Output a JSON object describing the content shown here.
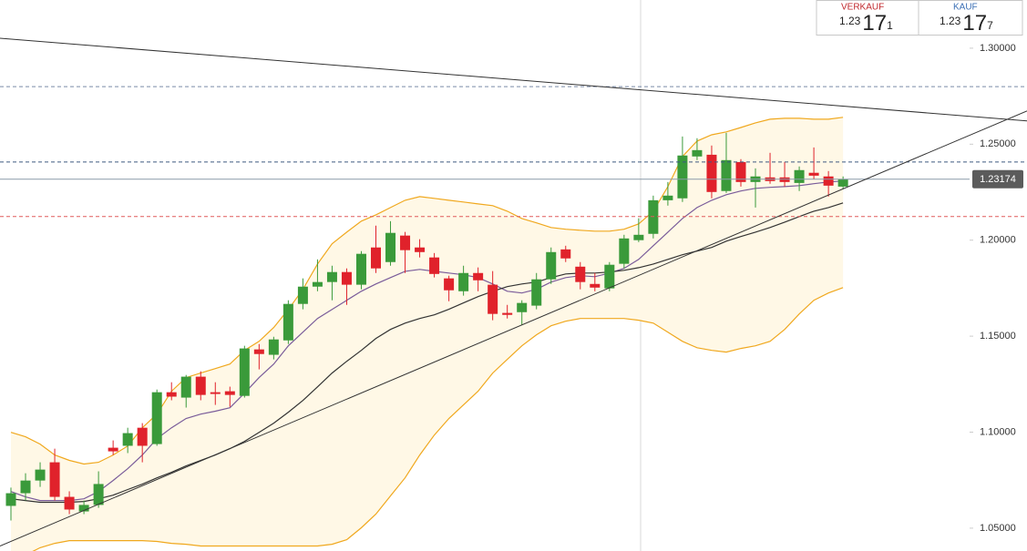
{
  "chart_data": {
    "type": "candlestick",
    "ylim": [
      1.0381,
      1.3251
    ],
    "yticks": [
      {
        "value": 1.05,
        "label": "1.05000"
      },
      {
        "value": 1.1,
        "label": "1.10000"
      },
      {
        "value": 1.15,
        "label": "1.15000"
      },
      {
        "value": 1.2,
        "label": "1.20000"
      },
      {
        "value": 1.25,
        "label": "1.25000"
      },
      {
        "value": 1.3,
        "label": "1.30000"
      }
    ],
    "up_color": "#3a9a3a",
    "down_color": "#e0222b",
    "open": [
      1.0616,
      1.0682,
      1.0748,
      1.0843,
      1.0663,
      1.0587,
      1.0621,
      1.0919,
      1.0929,
      1.1023,
      1.0938,
      1.1208,
      1.118,
      1.1289,
      1.1208,
      1.1213,
      1.1189,
      1.1431,
      1.1403,
      1.1478,
      1.1668,
      1.1758,
      1.1782,
      1.1834,
      1.1768,
      1.1962,
      1.1886,
      1.2024,
      1.1962,
      1.191,
      1.1801,
      1.1734,
      1.1829,
      1.1768,
      1.1621,
      1.1625,
      1.1659,
      1.1796,
      1.1952,
      1.1862,
      1.1772,
      1.1749,
      1.1877,
      1.2,
      1.2033,
      1.2208,
      1.2218,
      1.2436,
      1.2445,
      1.2256,
      1.2407,
      1.2303,
      1.2327,
      1.2327,
      1.2298,
      1.2351,
      1.2332,
      1.2279
    ],
    "high": [
      1.0711,
      1.0786,
      1.0843,
      1.0914,
      1.0692,
      1.0644,
      1.0796,
      1.0957,
      1.1023,
      1.1047,
      1.1222,
      1.126,
      1.1298,
      1.1317,
      1.126,
      1.1237,
      1.145,
      1.1459,
      1.1497,
      1.1687,
      1.1801,
      1.19,
      1.1867,
      1.1853,
      1.1943,
      1.2076,
      1.2099,
      1.2043,
      1.2005,
      1.1933,
      1.1815,
      1.1867,
      1.1858,
      1.1839,
      1.1663,
      1.1687,
      1.1829,
      1.1962,
      1.1971,
      1.1886,
      1.1829,
      1.1886,
      1.2028,
      1.2114,
      1.2232,
      1.2303,
      1.254,
      1.2531,
      1.2493,
      1.2559,
      1.2422,
      1.2374,
      1.2455,
      1.2407,
      1.2384,
      1.2483,
      1.236,
      1.2332
    ],
    "low": [
      1.054,
      1.0644,
      1.0715,
      1.0644,
      1.0573,
      1.0573,
      1.0606,
      1.0881,
      1.0891,
      1.0843,
      1.0929,
      1.1166,
      1.1128,
      1.1166,
      1.1142,
      1.1132,
      1.118,
      1.1327,
      1.1379,
      1.1459,
      1.164,
      1.1734,
      1.1687,
      1.1663,
      1.1744,
      1.1829,
      1.1867,
      1.1829,
      1.191,
      1.1806,
      1.1682,
      1.1711,
      1.1734,
      1.1583,
      1.1592,
      1.1559,
      1.164,
      1.1772,
      1.1886,
      1.1744,
      1.1734,
      1.1734,
      1.1853,
      1.199,
      1.2009,
      1.218,
      1.2199,
      1.2417,
      1.2218,
      1.2246,
      1.2279,
      1.217,
      1.2294,
      1.2279,
      1.2256,
      1.2317,
      1.2227,
      1.2265
    ],
    "close": [
      1.0682,
      1.0748,
      1.0805,
      1.0663,
      1.0597,
      1.0621,
      1.073,
      1.09,
      1.0995,
      1.0929,
      1.1208,
      1.1185,
      1.1289,
      1.1194,
      1.1199,
      1.1194,
      1.1436,
      1.1407,
      1.1483,
      1.1668,
      1.1758,
      1.1782,
      1.1834,
      1.1768,
      1.1929,
      1.1853,
      1.2038,
      1.1948,
      1.1938,
      1.1824,
      1.1739,
      1.1829,
      1.1791,
      1.1616,
      1.1611,
      1.1673,
      1.1796,
      1.1938,
      1.1905,
      1.1782,
      1.1753,
      1.1872,
      1.2009,
      1.2028,
      1.2208,
      1.2232,
      1.2441,
      1.2469,
      1.2251,
      1.2417,
      1.2303,
      1.2332,
      1.2308,
      1.2303,
      1.2365,
      1.2336,
      1.2284,
      1.2317
    ],
    "band_fill": "#fff8e6",
    "overlays": [
      {
        "color": "#f0a81e",
        "values": [
          1.0999,
          1.0976,
          1.0938,
          1.0881,
          1.0853,
          1.0834,
          1.0843,
          1.0881,
          1.0928,
          1.1023,
          1.1094,
          1.1213,
          1.1284,
          1.1308,
          1.1331,
          1.1355,
          1.1426,
          1.1473,
          1.1545,
          1.1639,
          1.1744,
          1.1876,
          1.1981,
          1.2042,
          1.2099,
          1.2132,
          1.217,
          1.2208,
          1.2227,
          1.2218,
          1.2208,
          1.2199,
          1.2189,
          1.218,
          1.2151,
          1.2113,
          1.209,
          1.2066,
          1.2057,
          1.2052,
          1.2047,
          1.2047,
          1.2057,
          1.2085,
          1.2151,
          1.2279,
          1.2436,
          1.2516,
          1.2549,
          1.2564,
          1.2587,
          1.2611,
          1.263,
          1.2635,
          1.2635,
          1.263,
          1.263,
          1.264
        ]
      },
      {
        "color": "#f0a81e",
        "values": [
          1.0312,
          1.036,
          1.0398,
          1.0421,
          1.0435,
          1.0435,
          1.0435,
          1.0435,
          1.0435,
          1.0435,
          1.0431,
          1.0421,
          1.0416,
          1.0407,
          1.0407,
          1.0407,
          1.0407,
          1.0407,
          1.0407,
          1.0407,
          1.0407,
          1.0407,
          1.0416,
          1.044,
          1.0502,
          1.0573,
          1.0668,
          1.0762,
          1.0881,
          1.0985,
          1.1071,
          1.1142,
          1.1213,
          1.1308,
          1.1379,
          1.145,
          1.1507,
          1.1554,
          1.1578,
          1.1592,
          1.1592,
          1.1592,
          1.1592,
          1.1583,
          1.1568,
          1.1521,
          1.1473,
          1.144,
          1.1426,
          1.1417,
          1.1436,
          1.145,
          1.1473,
          1.1535,
          1.1616,
          1.1687,
          1.1725,
          1.1753
        ]
      },
      {
        "color": "#7a5c9a",
        "values": [
          1.0691,
          1.0663,
          1.0644,
          1.0644,
          1.0644,
          1.0653,
          1.0691,
          1.0748,
          1.081,
          1.0881,
          1.0966,
          1.1023,
          1.1071,
          1.1094,
          1.1109,
          1.1127,
          1.1203,
          1.1284,
          1.1355,
          1.145,
          1.1521,
          1.1592,
          1.1639,
          1.1687,
          1.1734,
          1.1772,
          1.1805,
          1.1838,
          1.1848,
          1.1838,
          1.1829,
          1.182,
          1.1805,
          1.1772,
          1.1734,
          1.1725,
          1.1744,
          1.1782,
          1.1805,
          1.1815,
          1.181,
          1.1829,
          1.1853,
          1.19,
          1.1971,
          1.2042,
          1.2113,
          1.217,
          1.2208,
          1.2237,
          1.2256,
          1.227,
          1.2275,
          1.2279,
          1.2284,
          1.2294,
          1.2303,
          1.2308
        ]
      },
      {
        "color": "#333333",
        "values": [
          1.0653,
          1.0644,
          1.0635,
          1.0635,
          1.0635,
          1.0639,
          1.0653,
          1.0672,
          1.0701,
          1.0729,
          1.0762,
          1.0791,
          1.0824,
          1.0853,
          1.0881,
          1.0914,
          1.0952,
          1.0999,
          1.1047,
          1.1104,
          1.1165,
          1.1236,
          1.1308,
          1.1369,
          1.1426,
          1.1488,
          1.1535,
          1.1568,
          1.1592,
          1.1611,
          1.164,
          1.1673,
          1.1706,
          1.1734,
          1.1758,
          1.1772,
          1.1782,
          1.1805,
          1.1824,
          1.1829,
          1.1829,
          1.1834,
          1.1843,
          1.1857,
          1.1876,
          1.19,
          1.1924,
          1.1943,
          1.1962,
          1.1995,
          1.2019,
          1.2042,
          1.2066,
          1.2094,
          1.2123,
          1.2151,
          1.217,
          1.2194
        ]
      }
    ],
    "trendlines": [
      {
        "color": "#333333",
        "start": 1.3052,
        "end": 1.2621
      },
      {
        "color": "#333333",
        "start": 1.0407,
        "end": 1.2673
      }
    ],
    "levels": [
      {
        "value": 1.28,
        "color": "#7a8aa8"
      },
      {
        "value": 1.2407,
        "color": "#3d5a80"
      },
      {
        "value": 1.2123,
        "color": "#e05a5a"
      }
    ],
    "last_price": 1.23174,
    "last_color": "#8a9aa8"
  },
  "quote": {
    "sell": {
      "label": "VERKAUF",
      "prefix": "1.23",
      "pips": "17",
      "fraction": "1"
    },
    "buy": {
      "label": "KAUF",
      "prefix": "1.23",
      "pips": "17",
      "fraction": "7"
    }
  }
}
